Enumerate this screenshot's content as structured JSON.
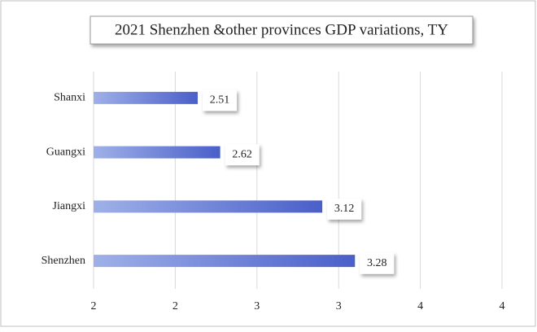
{
  "chart_data": {
    "type": "hbar",
    "title": "2021 Shenzhen &other provinces GDP variations, TY",
    "categories": [
      "Shanxi",
      "Guangxi",
      "Jiangxi",
      "Shenzhen"
    ],
    "values": [
      2.51,
      2.62,
      3.12,
      3.28
    ],
    "color": "#4a5fc9",
    "xlim": [
      2,
      4
    ],
    "xticks": [
      2,
      {
        "value": 2.4,
        "label": "2"
      },
      {
        "value": 2.8,
        "label": "3"
      },
      {
        "value": 3.2,
        "label": "3"
      },
      {
        "value": 3.6,
        "label": "4"
      },
      4
    ],
    "grid": true
  }
}
